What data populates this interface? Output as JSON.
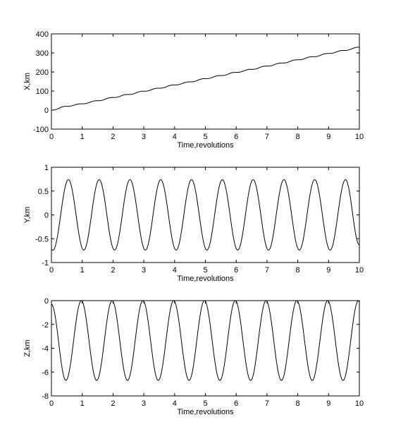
{
  "chart_data": [
    {
      "type": "line",
      "xlabel": "Time,revolutions",
      "ylabel": "X,km",
      "xlim": [
        0,
        10
      ],
      "ylim": [
        -100,
        400
      ],
      "xticks": [
        "0",
        "1",
        "2",
        "3",
        "4",
        "5",
        "6",
        "7",
        "8",
        "9",
        "10"
      ],
      "yticks": [
        "-100",
        "0",
        "100",
        "200",
        "300",
        "400"
      ],
      "grid": false,
      "series": [
        {
          "color": "#000000",
          "x": [
            0,
            0.5,
            1,
            1.5,
            2,
            2.5,
            3,
            3.5,
            4,
            4.5,
            5,
            5.5,
            6,
            6.5,
            7,
            7.5,
            8,
            8.5,
            9,
            9.5,
            10
          ],
          "y": [
            0,
            20,
            33,
            49,
            66,
            82,
            99,
            115,
            132,
            148,
            165,
            181,
            198,
            214,
            231,
            247,
            264,
            280,
            297,
            313,
            330
          ]
        }
      ]
    },
    {
      "type": "line",
      "xlabel": "Time,revolutions",
      "ylabel": "Y,km",
      "xlim": [
        0,
        10
      ],
      "ylim": [
        -1,
        1
      ],
      "xticks": [
        "0",
        "1",
        "2",
        "3",
        "4",
        "5",
        "6",
        "7",
        "8",
        "9",
        "10"
      ],
      "yticks": [
        "-1",
        "-0.5",
        "0",
        "0.5",
        "1"
      ],
      "grid": false,
      "series": [
        {
          "color": "#000000",
          "x": [
            0,
            0.05,
            0.55,
            1.05,
            1.55,
            2.05,
            2.55,
            3.05,
            3.55,
            4.05,
            4.55,
            5.05,
            5.55,
            6.05,
            6.55,
            7.05,
            7.55,
            8.05,
            8.55,
            9.05,
            9.55,
            10
          ],
          "y": [
            -0.73,
            -0.74,
            0.74,
            -0.74,
            0.74,
            -0.74,
            0.74,
            -0.74,
            0.74,
            -0.74,
            0.74,
            -0.74,
            0.74,
            -0.74,
            0.74,
            -0.74,
            0.74,
            -0.74,
            0.74,
            -0.74,
            0.74,
            -0.63
          ]
        }
      ]
    },
    {
      "type": "line",
      "xlabel": "Time,revolutions",
      "ylabel": "Z,km",
      "xlim": [
        0,
        10
      ],
      "ylim": [
        -8,
        0
      ],
      "xticks": [
        "0",
        "1",
        "2",
        "3",
        "4",
        "5",
        "6",
        "7",
        "8",
        "9",
        "10"
      ],
      "yticks": [
        "-8",
        "-6",
        "-4",
        "-2",
        "0"
      ],
      "grid": false,
      "series": [
        {
          "color": "#000000",
          "x": [
            0,
            0.47,
            0.97,
            1.47,
            1.97,
            2.47,
            2.97,
            3.47,
            3.97,
            4.47,
            4.97,
            5.47,
            5.97,
            6.47,
            6.97,
            7.47,
            7.97,
            8.47,
            8.97,
            9.47,
            9.97,
            10
          ],
          "y": [
            -0.3,
            -6.7,
            0,
            -6.7,
            0,
            -6.7,
            0,
            -6.7,
            0,
            -6.7,
            0,
            -6.7,
            0,
            -6.7,
            0,
            -6.7,
            0,
            -6.7,
            0,
            -6.7,
            0,
            -0.1
          ]
        }
      ]
    }
  ]
}
